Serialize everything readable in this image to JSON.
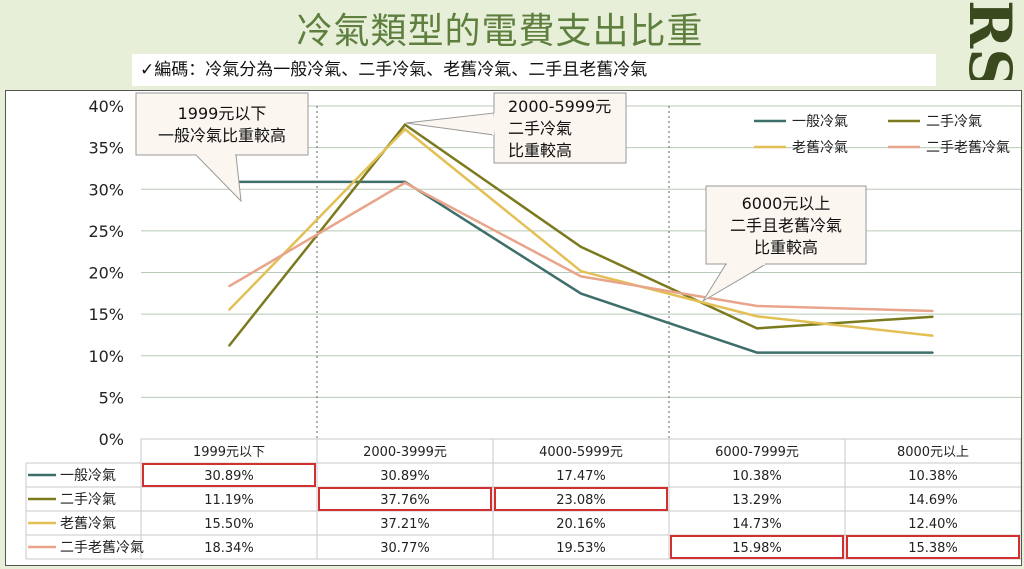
{
  "slide": {
    "title": "冷氣類型的電費支出比重",
    "note_check": "✓",
    "note_text": "編碼：冷氣分為一般冷氣、二手冷氣、老舊冷氣、二手且老舊冷氣",
    "logo_text": "RSP"
  },
  "colors": {
    "series": [
      "#3e6f6b",
      "#7c7a1f",
      "#e3c056",
      "#e9a58b"
    ],
    "highlight": "#d32f2f",
    "grid": "#b9c9b9"
  },
  "annotations": [
    {
      "lines": [
        "1999元以下",
        "一般冷氣比重較高"
      ]
    },
    {
      "lines": [
        "2000-5999元",
        "二手冷氣",
        "比重較高"
      ]
    },
    {
      "lines": [
        "6000元以上",
        "二手且老舊冷氣",
        "比重較高"
      ]
    }
  ],
  "chart_data": {
    "type": "line",
    "categories": [
      "1999元以下",
      "2000-3999元",
      "4000-5999元",
      "6000-7999元",
      "8000元以上"
    ],
    "ylim": [
      0,
      40
    ],
    "yticks": [
      "0%",
      "5%",
      "10%",
      "15%",
      "20%",
      "25%",
      "30%",
      "35%",
      "40%"
    ],
    "legend_position": "top-right",
    "series": [
      {
        "name": "一般冷氣",
        "values": [
          30.89,
          30.89,
          17.47,
          10.38,
          10.38
        ],
        "labels": [
          "30.89%",
          "30.89%",
          "17.47%",
          "10.38%",
          "10.38%"
        ]
      },
      {
        "name": "二手冷氣",
        "values": [
          11.19,
          37.76,
          23.08,
          13.29,
          14.69
        ],
        "labels": [
          "11.19%",
          "37.76%",
          "23.08%",
          "13.29%",
          "14.69%"
        ]
      },
      {
        "name": "老舊冷氣",
        "values": [
          15.5,
          37.21,
          20.16,
          14.73,
          12.4
        ],
        "labels": [
          "15.50%",
          "37.21%",
          "20.16%",
          "14.73%",
          "12.40%"
        ]
      },
      {
        "name": "二手老舊冷氣",
        "values": [
          18.34,
          30.77,
          19.53,
          15.98,
          15.38
        ],
        "labels": [
          "18.34%",
          "30.77%",
          "19.53%",
          "15.98%",
          "15.38%"
        ]
      }
    ],
    "highlighted_cells": [
      [
        0,
        0
      ],
      [
        1,
        1
      ],
      [
        1,
        2
      ],
      [
        3,
        3
      ],
      [
        3,
        4
      ]
    ]
  }
}
